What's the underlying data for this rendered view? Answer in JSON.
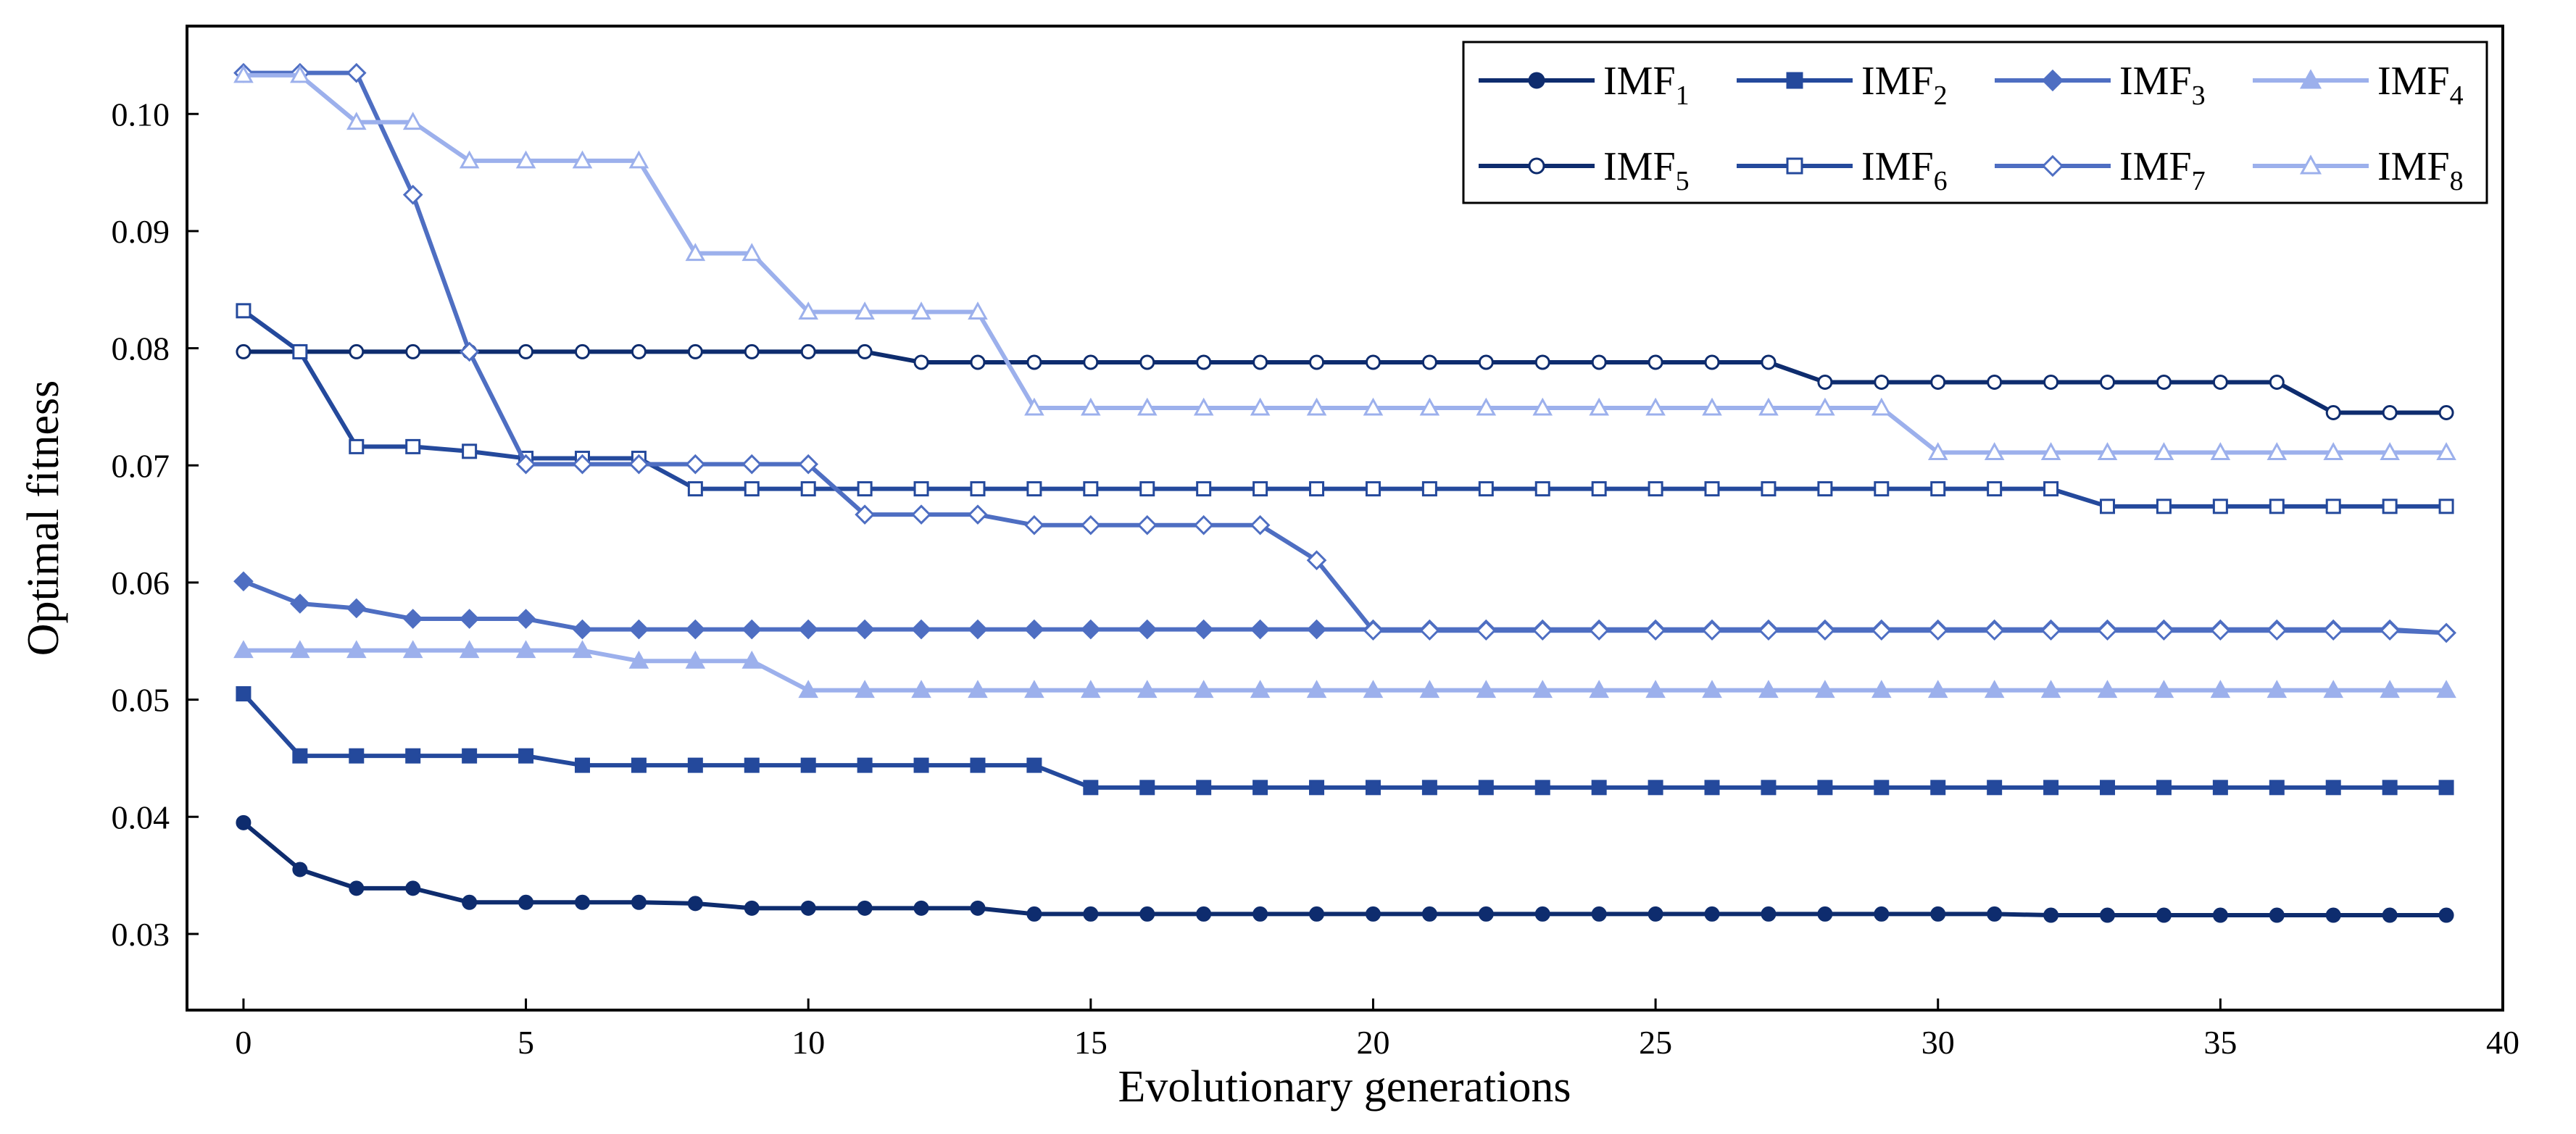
{
  "chart_data": {
    "type": "line",
    "xlabel": "Evolutionary generations",
    "ylabel": "Optimal fitness",
    "xlim": [
      -1,
      40
    ],
    "ylim": [
      0.0235,
      0.1075
    ],
    "xticks": [
      0,
      5,
      10,
      15,
      20,
      25,
      30,
      35,
      40
    ],
    "xtick_labels": [
      "0",
      "5",
      "10",
      "15",
      "20",
      "25",
      "30",
      "35",
      "40"
    ],
    "yticks": [
      0.03,
      0.04,
      0.05,
      0.06,
      0.07,
      0.08,
      0.09,
      0.1
    ],
    "ytick_labels": [
      "0.03",
      "0.04",
      "0.05",
      "0.06",
      "0.07",
      "0.08",
      "0.09",
      "0.10"
    ],
    "grid": false,
    "legend_position": "top-right",
    "x": [
      0,
      1,
      2,
      3,
      4,
      5,
      6,
      7,
      8,
      9,
      10,
      11,
      12,
      13,
      14,
      15,
      16,
      17,
      18,
      19,
      20,
      21,
      22,
      23,
      24,
      25,
      26,
      27,
      28,
      29,
      30,
      31,
      32,
      33,
      34,
      35,
      36,
      37,
      38,
      39
    ],
    "series": [
      {
        "name": "IMF",
        "sub": "1",
        "color": "#0e2c6e",
        "marker": "circle",
        "filled": true,
        "values": [
          0.0395,
          0.0355,
          0.0339,
          0.0339,
          0.0327,
          0.0327,
          0.0327,
          0.0327,
          0.0326,
          0.0322,
          0.0322,
          0.0322,
          0.0322,
          0.0322,
          0.0317,
          0.0317,
          0.0317,
          0.0317,
          0.0317,
          0.0317,
          0.0317,
          0.0317,
          0.0317,
          0.0317,
          0.0317,
          0.0317,
          0.0317,
          0.0317,
          0.0317,
          0.0317,
          0.0317,
          0.0317,
          0.0316,
          0.0316,
          0.0316,
          0.0316,
          0.0316,
          0.0316,
          0.0316,
          0.0316
        ]
      },
      {
        "name": "IMF",
        "sub": "2",
        "color": "#24499c",
        "marker": "square",
        "filled": true,
        "values": [
          0.0505,
          0.0452,
          0.0452,
          0.0452,
          0.0452,
          0.0452,
          0.0444,
          0.0444,
          0.0444,
          0.0444,
          0.0444,
          0.0444,
          0.0444,
          0.0444,
          0.0444,
          0.0425,
          0.0425,
          0.0425,
          0.0425,
          0.0425,
          0.0425,
          0.0425,
          0.0425,
          0.0425,
          0.0425,
          0.0425,
          0.0425,
          0.0425,
          0.0425,
          0.0425,
          0.0425,
          0.0425,
          0.0425,
          0.0425,
          0.0425,
          0.0425,
          0.0425,
          0.0425,
          0.0425,
          0.0425
        ]
      },
      {
        "name": "IMF",
        "sub": "3",
        "color": "#4e6ec2",
        "marker": "diamond",
        "filled": true,
        "values": [
          0.0601,
          0.0582,
          0.0578,
          0.0569,
          0.0569,
          0.0569,
          0.056,
          0.056,
          0.056,
          0.056,
          0.056,
          0.056,
          0.056,
          0.056,
          0.056,
          0.056,
          0.056,
          0.056,
          0.056,
          0.056,
          0.056,
          0.056,
          0.056,
          0.056,
          0.056,
          0.056,
          0.056,
          0.056,
          0.056,
          0.056,
          0.056,
          0.056,
          0.056,
          0.056,
          0.056,
          0.056,
          0.056,
          0.056,
          0.056,
          0.0557
        ]
      },
      {
        "name": "IMF",
        "sub": "4",
        "color": "#9cb0ec",
        "marker": "triangle",
        "filled": true,
        "values": [
          0.0542,
          0.0542,
          0.0542,
          0.0542,
          0.0542,
          0.0542,
          0.0542,
          0.0533,
          0.0533,
          0.0533,
          0.0508,
          0.0508,
          0.0508,
          0.0508,
          0.0508,
          0.0508,
          0.0508,
          0.0508,
          0.0508,
          0.0508,
          0.0508,
          0.0508,
          0.0508,
          0.0508,
          0.0508,
          0.0508,
          0.0508,
          0.0508,
          0.0508,
          0.0508,
          0.0508,
          0.0508,
          0.0508,
          0.0508,
          0.0508,
          0.0508,
          0.0508,
          0.0508,
          0.0508,
          0.0508
        ]
      },
      {
        "name": "IMF",
        "sub": "5",
        "color": "#0e2c6e",
        "marker": "circle",
        "filled": false,
        "values": [
          0.0797,
          0.0797,
          0.0797,
          0.0797,
          0.0797,
          0.0797,
          0.0797,
          0.0797,
          0.0797,
          0.0797,
          0.0797,
          0.0797,
          0.0788,
          0.0788,
          0.0788,
          0.0788,
          0.0788,
          0.0788,
          0.0788,
          0.0788,
          0.0788,
          0.0788,
          0.0788,
          0.0788,
          0.0788,
          0.0788,
          0.0788,
          0.0788,
          0.0771,
          0.0771,
          0.0771,
          0.0771,
          0.0771,
          0.0771,
          0.0771,
          0.0771,
          0.0771,
          0.0745,
          0.0745,
          0.0745
        ]
      },
      {
        "name": "IMF",
        "sub": "6",
        "color": "#24499c",
        "marker": "square",
        "filled": false,
        "values": [
          0.0832,
          0.0797,
          0.0716,
          0.0716,
          0.0712,
          0.0706,
          0.0706,
          0.0706,
          0.068,
          0.068,
          0.068,
          0.068,
          0.068,
          0.068,
          0.068,
          0.068,
          0.068,
          0.068,
          0.068,
          0.068,
          0.068,
          0.068,
          0.068,
          0.068,
          0.068,
          0.068,
          0.068,
          0.068,
          0.068,
          0.068,
          0.068,
          0.068,
          0.068,
          0.0665,
          0.0665,
          0.0665,
          0.0665,
          0.0665,
          0.0665,
          0.0665
        ]
      },
      {
        "name": "IMF",
        "sub": "7",
        "color": "#4e6ec2",
        "marker": "diamond",
        "filled": false,
        "values": [
          0.1035,
          0.1035,
          0.1035,
          0.0931,
          0.0797,
          0.0701,
          0.0701,
          0.0701,
          0.0701,
          0.0701,
          0.0701,
          0.0658,
          0.0658,
          0.0658,
          0.0649,
          0.0649,
          0.0649,
          0.0649,
          0.0649,
          0.0619,
          0.0559,
          0.0559,
          0.0559,
          0.0559,
          0.0559,
          0.0559,
          0.0559,
          0.0559,
          0.0559,
          0.0559,
          0.0559,
          0.0559,
          0.0559,
          0.0559,
          0.0559,
          0.0559,
          0.0559,
          0.0559,
          0.0559,
          0.0557
        ]
      },
      {
        "name": "IMF",
        "sub": "8",
        "color": "#9cb0ec",
        "marker": "triangle",
        "filled": false,
        "values": [
          0.1033,
          0.1033,
          0.0993,
          0.0993,
          0.096,
          0.096,
          0.096,
          0.096,
          0.0881,
          0.0881,
          0.0831,
          0.0831,
          0.0831,
          0.0831,
          0.0749,
          0.0749,
          0.0749,
          0.0749,
          0.0749,
          0.0749,
          0.0749,
          0.0749,
          0.0749,
          0.0749,
          0.0749,
          0.0749,
          0.0749,
          0.0749,
          0.0749,
          0.0749,
          0.0711,
          0.0711,
          0.0711,
          0.0711,
          0.0711,
          0.0711,
          0.0711,
          0.0711,
          0.0711,
          0.0711
        ]
      }
    ]
  }
}
